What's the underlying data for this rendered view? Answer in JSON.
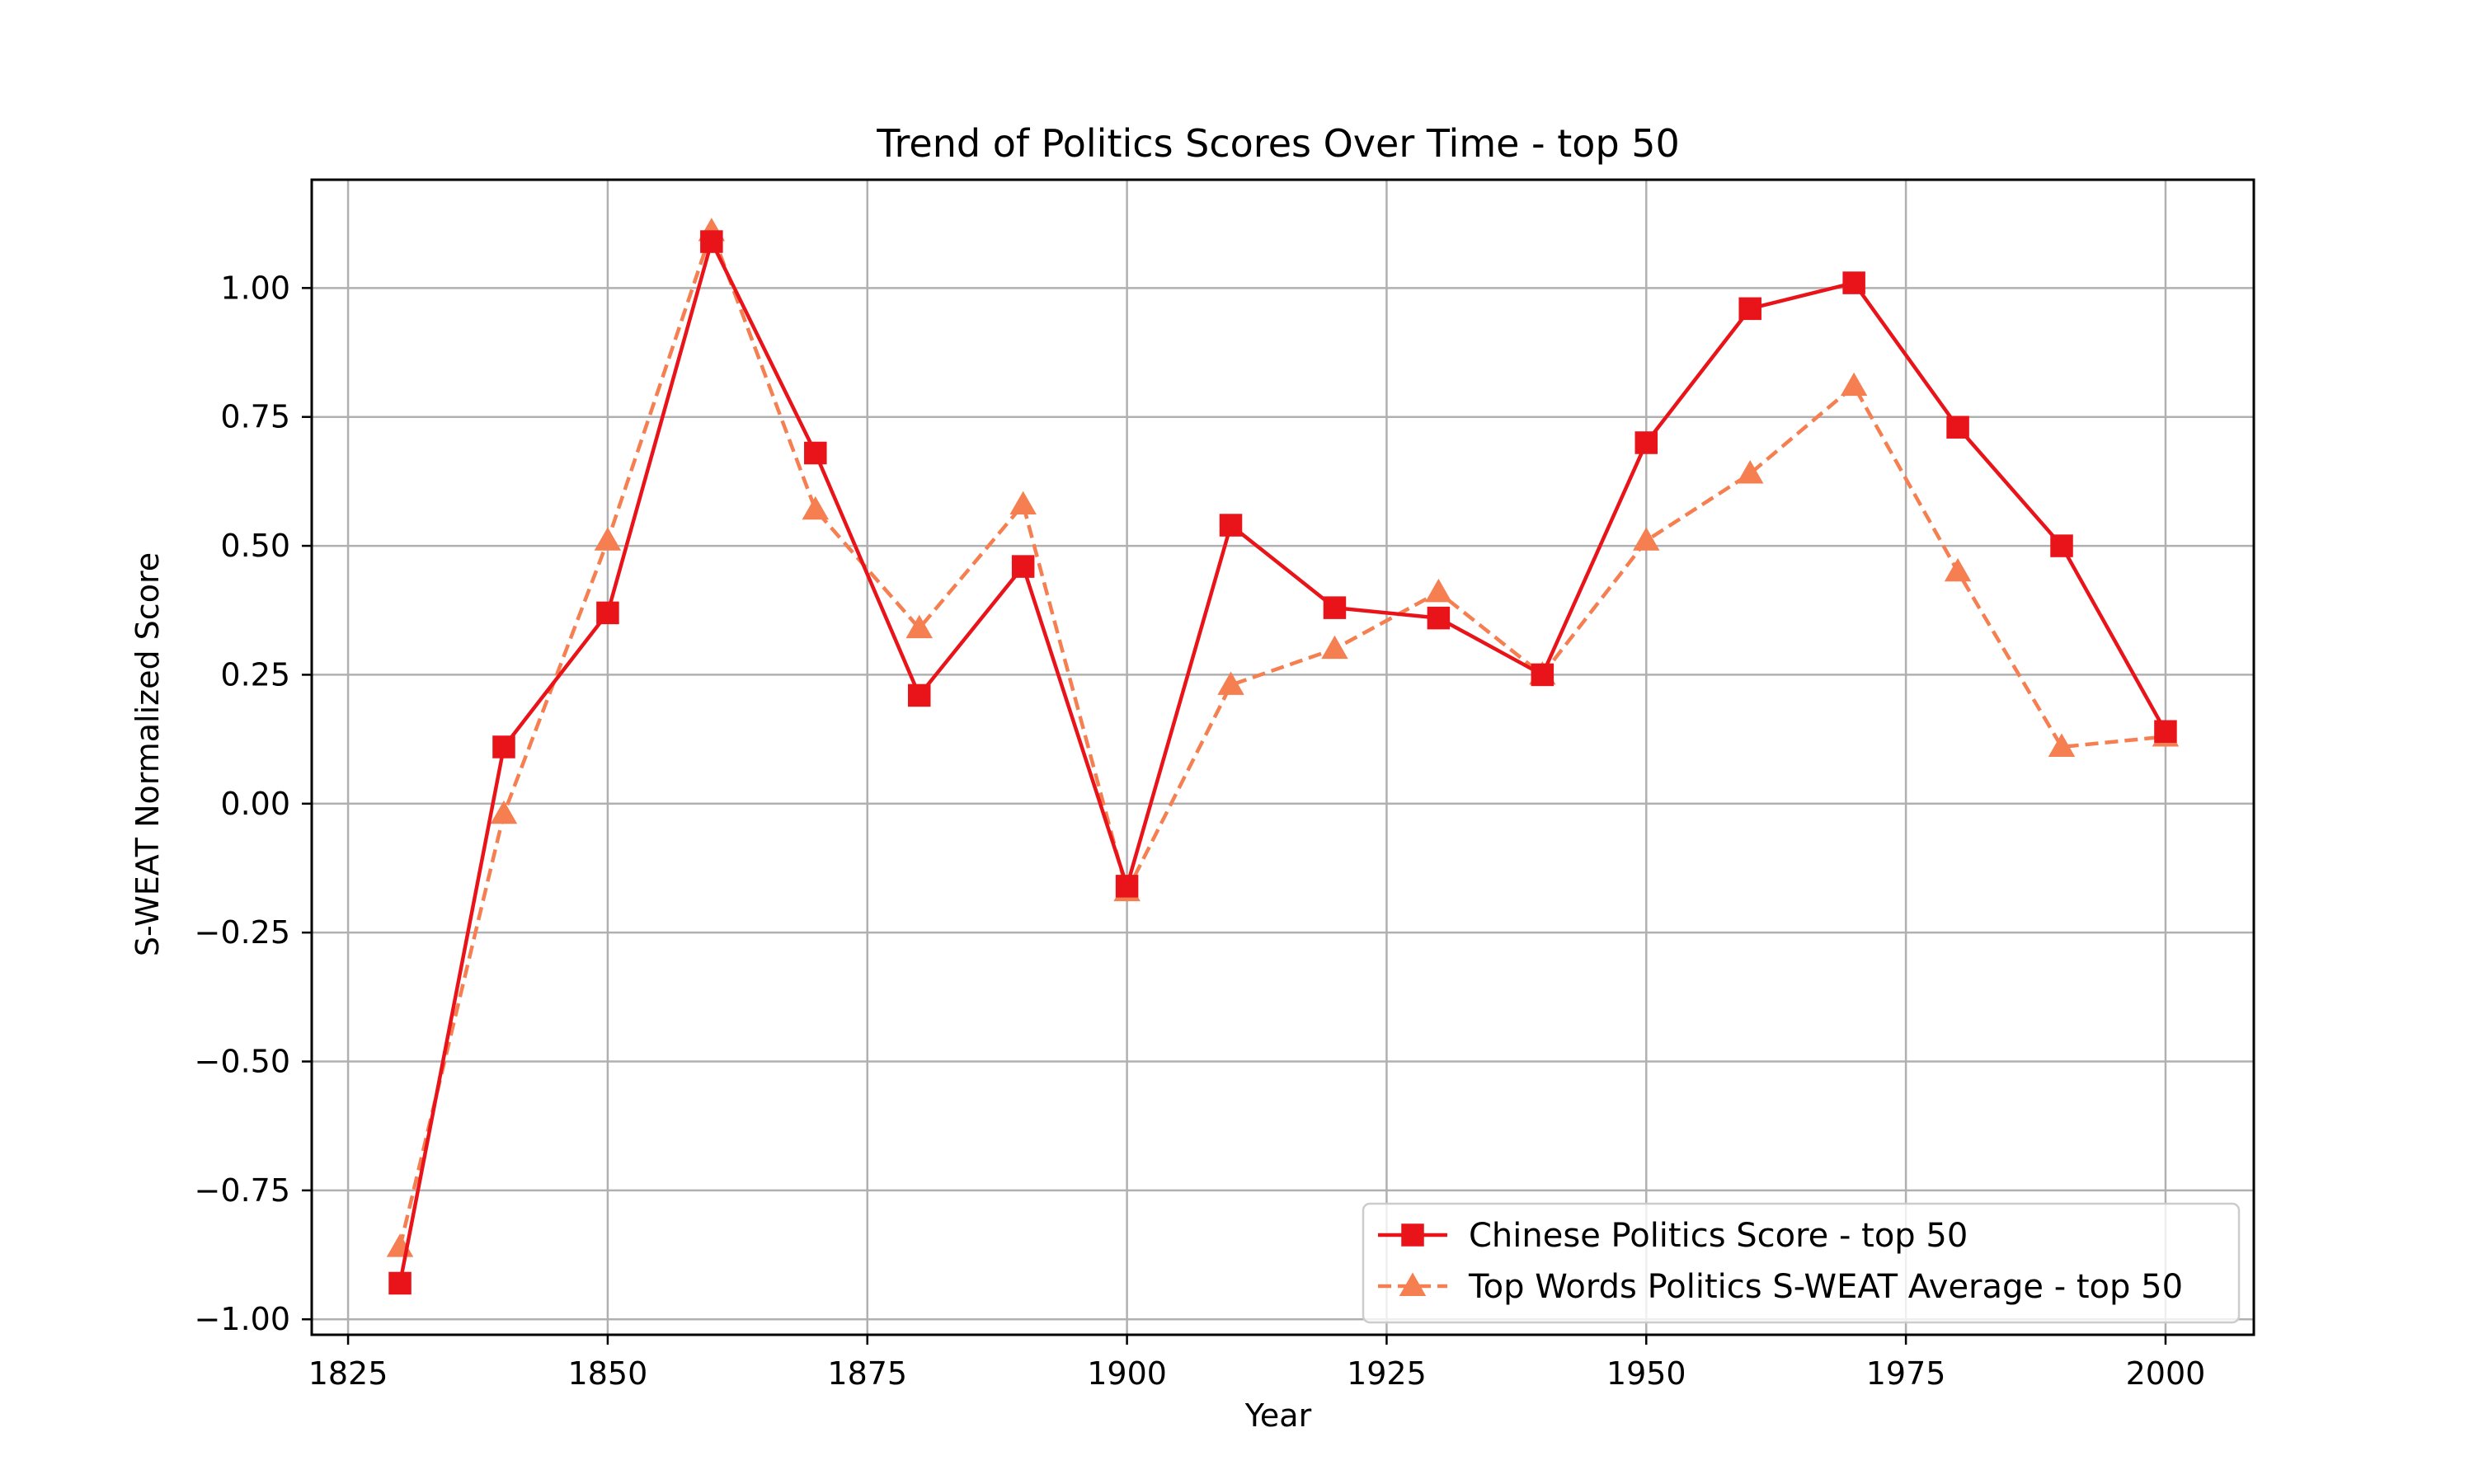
{
  "chart_data": {
    "type": "line",
    "title": "Trend of Politics Scores Over Time - top 50",
    "xlabel": "Year",
    "ylabel": "S-WEAT Normalized Score",
    "xlim": [
      1821.5,
      2008.5
    ],
    "ylim": [
      -1.03,
      1.21
    ],
    "xticks": [
      1825,
      1850,
      1875,
      1900,
      1925,
      1950,
      1975,
      2000
    ],
    "yticks": [
      -1.0,
      -0.75,
      -0.5,
      -0.25,
      0.0,
      0.25,
      0.5,
      0.75,
      1.0
    ],
    "ytick_labels": [
      "−1.00",
      "−0.75",
      "−0.50",
      "−0.25",
      "0.00",
      "0.25",
      "0.50",
      "0.75",
      "1.00"
    ],
    "xtick_labels": [
      "1825",
      "1850",
      "1875",
      "1900",
      "1925",
      "1950",
      "1975",
      "2000"
    ],
    "grid": true,
    "legend_position": "lower-right",
    "x": [
      1830,
      1840,
      1850,
      1860,
      1870,
      1880,
      1890,
      1900,
      1910,
      1920,
      1930,
      1940,
      1950,
      1960,
      1970,
      1980,
      1990,
      2000
    ],
    "series": [
      {
        "name": "Chinese Politics Score - top 50",
        "color": "#e8141a",
        "marker": "square",
        "linestyle": "solid",
        "values": [
          -0.93,
          0.11,
          0.37,
          1.09,
          0.68,
          0.21,
          0.46,
          -0.16,
          0.54,
          0.38,
          0.36,
          0.25,
          0.7,
          0.96,
          1.01,
          0.73,
          0.5,
          0.14
        ]
      },
      {
        "name": "Top Words Politics S-WEAT Average - top 50",
        "color": "#f57f50",
        "marker": "triangle",
        "linestyle": "dashed",
        "values": [
          -0.86,
          -0.02,
          0.51,
          1.11,
          0.57,
          0.34,
          0.58,
          -0.17,
          0.23,
          0.3,
          0.41,
          0.25,
          0.51,
          0.64,
          0.81,
          0.45,
          0.11,
          0.13
        ]
      }
    ]
  }
}
